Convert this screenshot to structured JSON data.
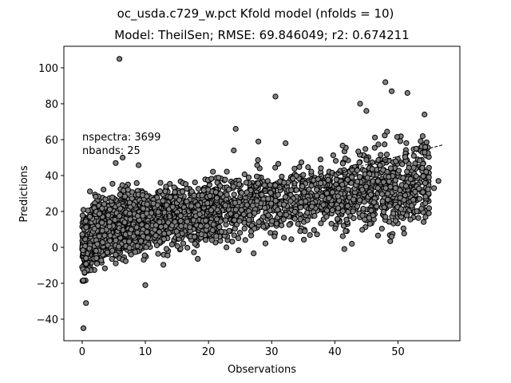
{
  "figure": {
    "suptitle": "oc_usda.c729_w.pct Kfold model (nfolds = 10)",
    "title": "Model: TheilSen; RMSE: 69.846049; r2: 0.674211"
  },
  "annotations": {
    "nspectra": "nspectra: 3699",
    "nbands": "nbands: 25"
  },
  "chart_data": {
    "type": "scatter",
    "title": "Model: TheilSen; RMSE: 69.846049; r2: 0.674211",
    "xlabel": "Observations",
    "ylabel": "Predictions",
    "xlim": [
      -2.9,
      59.8
    ],
    "ylim": [
      -52,
      112
    ],
    "xticks": [
      0,
      10,
      20,
      30,
      40,
      50
    ],
    "yticks": [
      -40,
      -20,
      0,
      20,
      40,
      60,
      80,
      100
    ],
    "grid": false,
    "legend": "none",
    "marker_color": "#808080",
    "marker_edge_color": "#000000",
    "fit_line": {
      "style": "dashed",
      "color": "#000000",
      "x": [
        0,
        57
      ],
      "y": [
        5,
        57
      ]
    },
    "n_points_shown": 3699,
    "notable_points": [
      {
        "x": 5.9,
        "y": 105
      },
      {
        "x": 30.6,
        "y": 84
      },
      {
        "x": 48,
        "y": 92
      },
      {
        "x": 49,
        "y": 87
      },
      {
        "x": 51.5,
        "y": 86
      },
      {
        "x": 44,
        "y": 80
      },
      {
        "x": 45,
        "y": 76
      },
      {
        "x": 54.2,
        "y": 74
      },
      {
        "x": 24.3,
        "y": 66
      },
      {
        "x": 27.9,
        "y": 59
      },
      {
        "x": 32.2,
        "y": 58
      },
      {
        "x": 24,
        "y": 54
      },
      {
        "x": 6.4,
        "y": 50
      },
      {
        "x": 5.3,
        "y": 47
      },
      {
        "x": 49,
        "y": 6
      },
      {
        "x": 42.7,
        "y": 2
      },
      {
        "x": 10,
        "y": -21
      },
      {
        "x": 0.6,
        "y": -31
      },
      {
        "x": 0.2,
        "y": -45
      },
      {
        "x": 56.4,
        "y": 37
      },
      {
        "x": 55.7,
        "y": 33
      }
    ]
  }
}
